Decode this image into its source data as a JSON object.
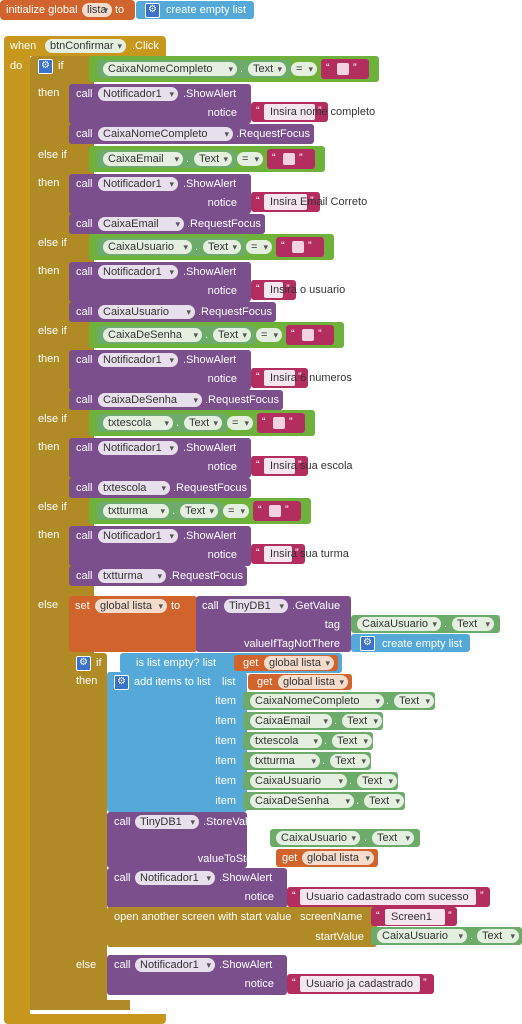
{
  "init": {
    "label": "initialize global",
    "var": "lista",
    "to": "to",
    "value": "create empty list"
  },
  "event": {
    "when": "when",
    "component": "btnConfirmar",
    "event": ".Click",
    "do": "do"
  },
  "kw": {
    "if": "if",
    "then": "then",
    "elseif": "else if",
    "else": "else",
    "call": "call",
    "notice": "notice",
    "dot": ".",
    "eq": "="
  },
  "branches": [
    {
      "field": "CaixaNomeCompleto",
      "prop": "Text",
      "alert": "Insira nome completo",
      "focus": "CaixaNomeCompleto"
    },
    {
      "field": "CaixaEmail",
      "prop": "Text",
      "alert": "Insira Email Correto",
      "focus": "CaixaEmail"
    },
    {
      "field": "CaixaUsuario",
      "prop": "Text",
      "alert": "Insira o usuario",
      "focus": "CaixaUsuario"
    },
    {
      "field": "CaixaDeSenha",
      "prop": "Text",
      "alert": "Insira  6 numeros",
      "focus": "CaixaDeSenha"
    },
    {
      "field": "txtescola",
      "prop": "Text",
      "alert": "Insira  sua escola",
      "focus": "txtescola"
    },
    {
      "field": "txtturma",
      "prop": "Text",
      "alert": "Insira  sua turma",
      "focus": "txtturma"
    }
  ],
  "notif": {
    "component": "Notificador1",
    "method": ".ShowAlert"
  },
  "focus_method": ".RequestFocus",
  "else_block": {
    "set": "set",
    "var": "global lista",
    "to": "to",
    "db": "TinyDB1",
    "get": ".GetValue",
    "tag": "tag",
    "tag_field": "CaixaUsuario",
    "tag_prop": "Text",
    "vif": "valueIfTagNotThere",
    "empty": "create empty list",
    "if": "if",
    "isempty": "is list empty?  list",
    "getl": "get",
    "getv": "global lista",
    "add": "add items to list",
    "list": "list",
    "item": "item",
    "items": [
      {
        "f": "CaixaNomeCompleto",
        "p": "Text"
      },
      {
        "f": "CaixaEmail",
        "p": "Text"
      },
      {
        "f": "txtescola",
        "p": "Text"
      },
      {
        "f": "txtturma",
        "p": "Text"
      },
      {
        "f": "CaixaUsuario",
        "p": "Text"
      },
      {
        "f": "CaixaDeSenha",
        "p": "Text"
      }
    ],
    "store": ".StoreValue",
    "valueToStore": "valueToStore",
    "success": "Usuario cadastrado com sucesso",
    "open": "open another screen with start value",
    "screenName": "screenName",
    "screen": "Screen1",
    "startValue": "startValue",
    "fail": "Usuario ja cadastrado"
  }
}
